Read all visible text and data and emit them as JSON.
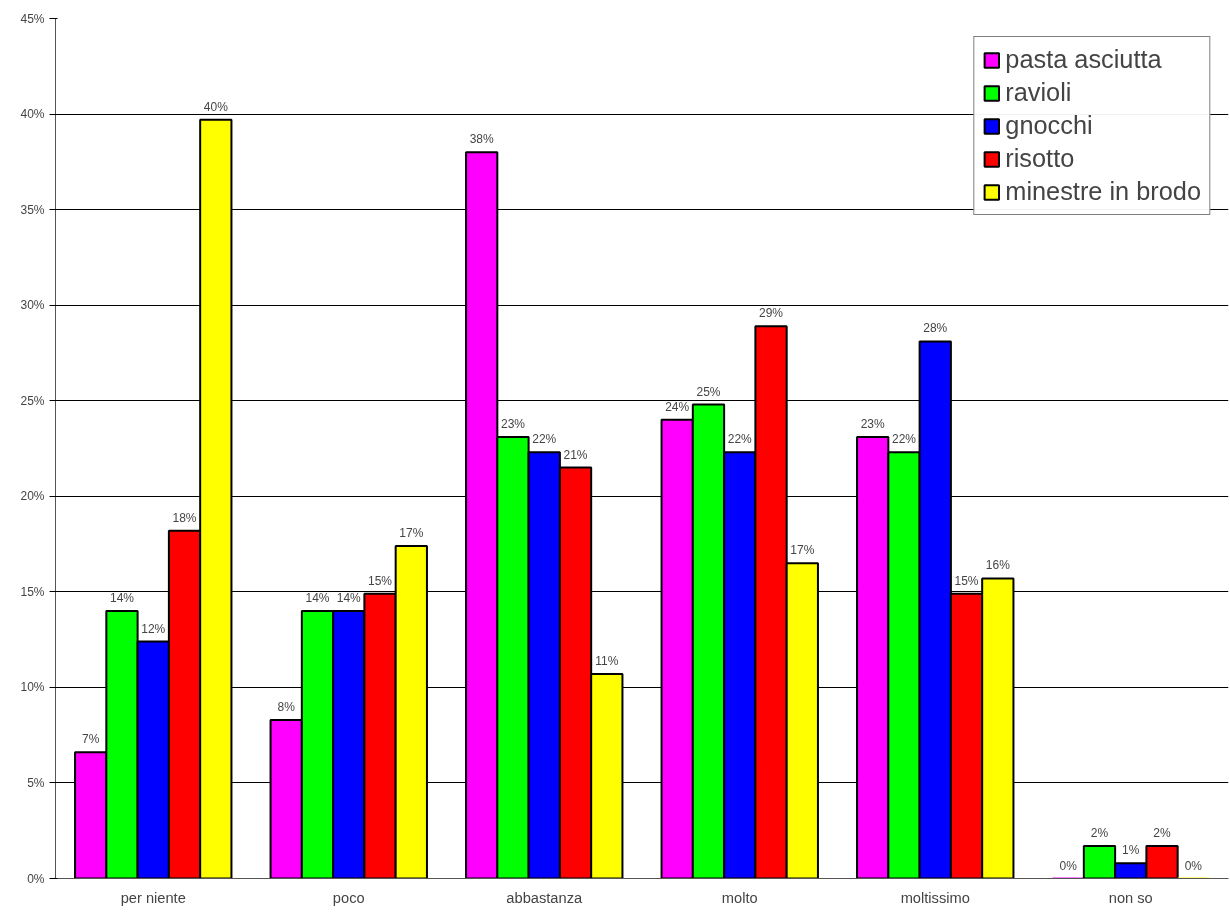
{
  "chart_data": {
    "type": "bar",
    "categories": [
      "per niente",
      "poco",
      "abbastanza",
      "molto",
      "moltissimo",
      "non so"
    ],
    "series": [
      {
        "name": "pasta asciutta",
        "color": "#ff00ff",
        "values": [
          6.6,
          8.3,
          38.0,
          24.0,
          23.1,
          0
        ],
        "value_labels": [
          "7%",
          "8%",
          "38%",
          "24%",
          "23%",
          "0%"
        ]
      },
      {
        "name": "ravioli",
        "color": "#00ff00",
        "values": [
          14.0,
          14.0,
          23.1,
          24.8,
          22.3,
          1.7
        ],
        "value_labels": [
          "14%",
          "14%",
          "23%",
          "25%",
          "22%",
          "2%"
        ]
      },
      {
        "name": "gnocchi",
        "color": "#0000ff",
        "values": [
          12.4,
          14.0,
          22.3,
          22.3,
          28.1,
          0.8
        ],
        "value_labels": [
          "12%",
          "14%",
          "22%",
          "22%",
          "28%",
          "1%"
        ]
      },
      {
        "name": "risotto",
        "color": "#ff0000",
        "values": [
          18.2,
          14.9,
          21.5,
          28.9,
          14.9,
          1.7
        ],
        "value_labels": [
          "18%",
          "15%",
          "21%",
          "29%",
          "15%",
          "2%"
        ]
      },
      {
        "name": "minestre in brodo",
        "color": "#ffff00",
        "values": [
          39.7,
          17.4,
          10.7,
          16.5,
          15.7,
          0
        ],
        "value_labels": [
          "40%",
          "17%",
          "11%",
          "17%",
          "16%",
          "0%"
        ]
      }
    ],
    "ylim": [
      0,
      45
    ],
    "yticks": [
      {
        "value": 0,
        "label": "0%"
      },
      {
        "value": 5,
        "label": "5%"
      },
      {
        "value": 10,
        "label": "10%"
      },
      {
        "value": 15,
        "label": "15%"
      },
      {
        "value": 20,
        "label": "20%"
      },
      {
        "value": 25,
        "label": "25%"
      },
      {
        "value": 30,
        "label": "30%"
      },
      {
        "value": 35,
        "label": "35%"
      },
      {
        "value": 40,
        "label": "40%"
      },
      {
        "value": 45,
        "label": "45%"
      }
    ],
    "grid": "y",
    "legend": "top right"
  }
}
